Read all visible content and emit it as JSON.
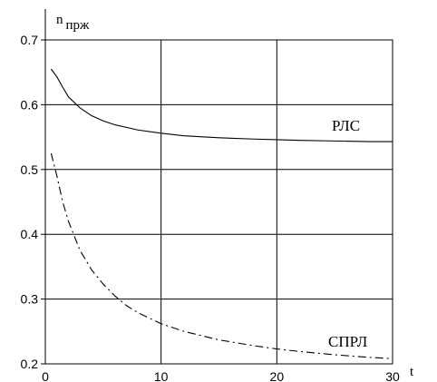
{
  "chart_data": {
    "type": "line",
    "title": "",
    "ylabel": "n",
    "ylabel_sub": "прж",
    "xlabel": "t",
    "xlim": [
      0,
      30
    ],
    "ylim": [
      0.2,
      0.7
    ],
    "x_ticks": [
      0,
      10,
      20,
      30
    ],
    "x_tick_labels": [
      "0",
      "10",
      "20",
      "30"
    ],
    "y_ticks": [
      0.2,
      0.3,
      0.4,
      0.5,
      0.6,
      0.7
    ],
    "y_tick_labels": [
      "0.2",
      "0.3",
      "0.4",
      "0.5",
      "0.6",
      "0.7"
    ],
    "grid": true,
    "series": [
      {
        "name": "РЛС",
        "style": "solid",
        "color": "#000000",
        "x": [
          0.5,
          1,
          1.5,
          2,
          3,
          4,
          5,
          6,
          8,
          10,
          12,
          15,
          18,
          20,
          22,
          25,
          28,
          30
        ],
        "y": [
          0.655,
          0.643,
          0.627,
          0.612,
          0.595,
          0.583,
          0.575,
          0.569,
          0.561,
          0.556,
          0.552,
          0.549,
          0.547,
          0.546,
          0.545,
          0.544,
          0.543,
          0.543
        ]
      },
      {
        "name": "СПРЛ",
        "style": "dash-dot",
        "color": "#000000",
        "x": [
          0.5,
          1,
          1.5,
          2,
          3,
          4,
          5,
          6,
          7,
          8,
          10,
          12,
          15,
          18,
          20,
          22,
          25,
          28,
          30
        ],
        "y": [
          0.525,
          0.49,
          0.45,
          0.42,
          0.375,
          0.345,
          0.323,
          0.305,
          0.29,
          0.279,
          0.262,
          0.25,
          0.237,
          0.228,
          0.223,
          0.219,
          0.214,
          0.21,
          0.208
        ]
      }
    ]
  }
}
